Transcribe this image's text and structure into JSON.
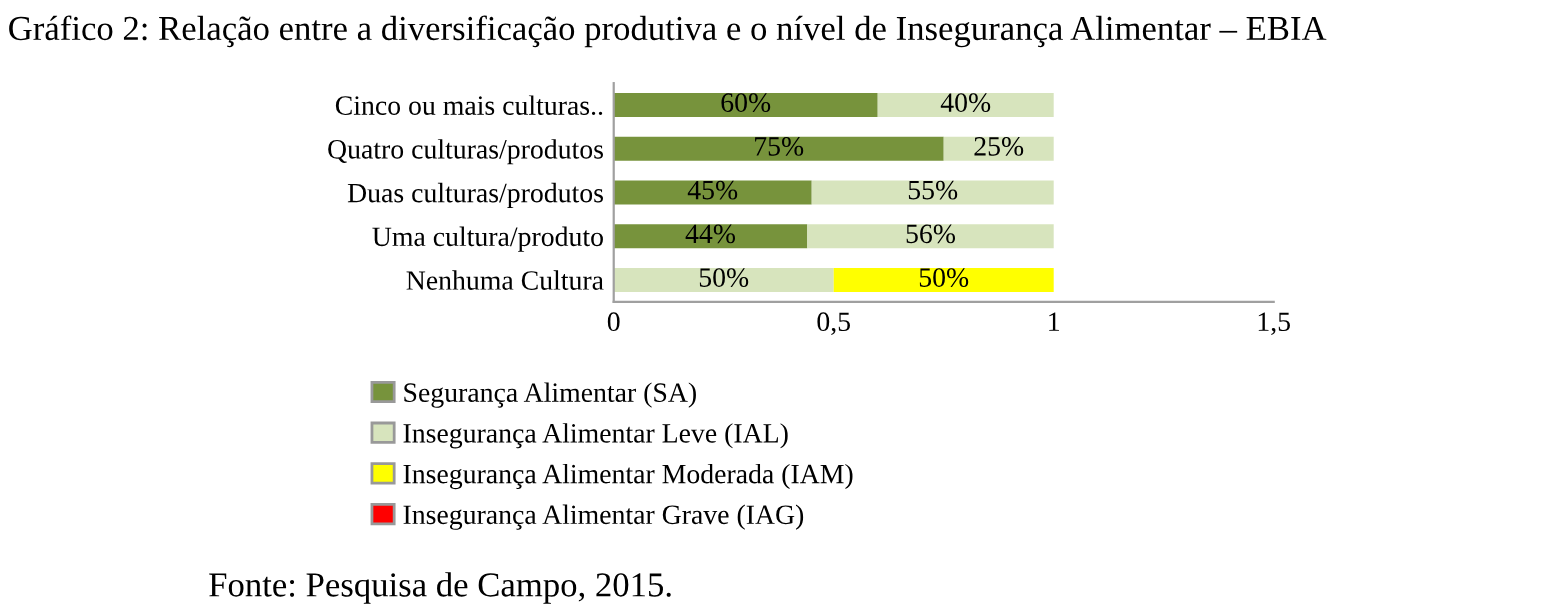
{
  "chart_data": {
    "type": "bar",
    "orientation": "horizontal",
    "stacked": true,
    "title": "Gráfico 2: Relação entre a diversificação produtiva e o nível de Insegurança Alimentar – EBIA",
    "categories": [
      "Cinco ou mais culturas..",
      "Quatro culturas/produtos",
      "Duas culturas/produtos",
      "Uma cultura/produto",
      "Nenhuma Cultura"
    ],
    "series": [
      {
        "name": "Segurança Alimentar (SA)",
        "color": "#77933c",
        "values": [
          0.6,
          0.75,
          0.45,
          0.44,
          null
        ],
        "value_labels": [
          "60%",
          "75%",
          "45%",
          "44%",
          null
        ]
      },
      {
        "name": "Insegurança Alimentar Leve (IAL)",
        "color": "#d7e4bd",
        "values": [
          0.4,
          0.25,
          0.55,
          0.56,
          0.5
        ],
        "value_labels": [
          "40%",
          "25%",
          "55%",
          "56%",
          "50%"
        ]
      },
      {
        "name": "Insegurança Alimentar Moderada (IAM)",
        "color": "#ffff00",
        "values": [
          null,
          null,
          null,
          null,
          0.5
        ],
        "value_labels": [
          null,
          null,
          null,
          null,
          "50%"
        ]
      },
      {
        "name": "Insegurança Alimentar Grave (IAG)",
        "color": "#ff0000",
        "values": [
          null,
          null,
          null,
          null,
          null
        ]
      }
    ],
    "xlim": [
      0,
      1.5
    ],
    "xticks": [
      0,
      {
        "value": 0.5,
        "label": "0,5"
      },
      1,
      {
        "value": 1.5,
        "label": "1,5"
      }
    ],
    "legend": "bottom",
    "grid": false,
    "annotations": [
      "Fonte: Pesquisa de Campo, 2015."
    ]
  }
}
